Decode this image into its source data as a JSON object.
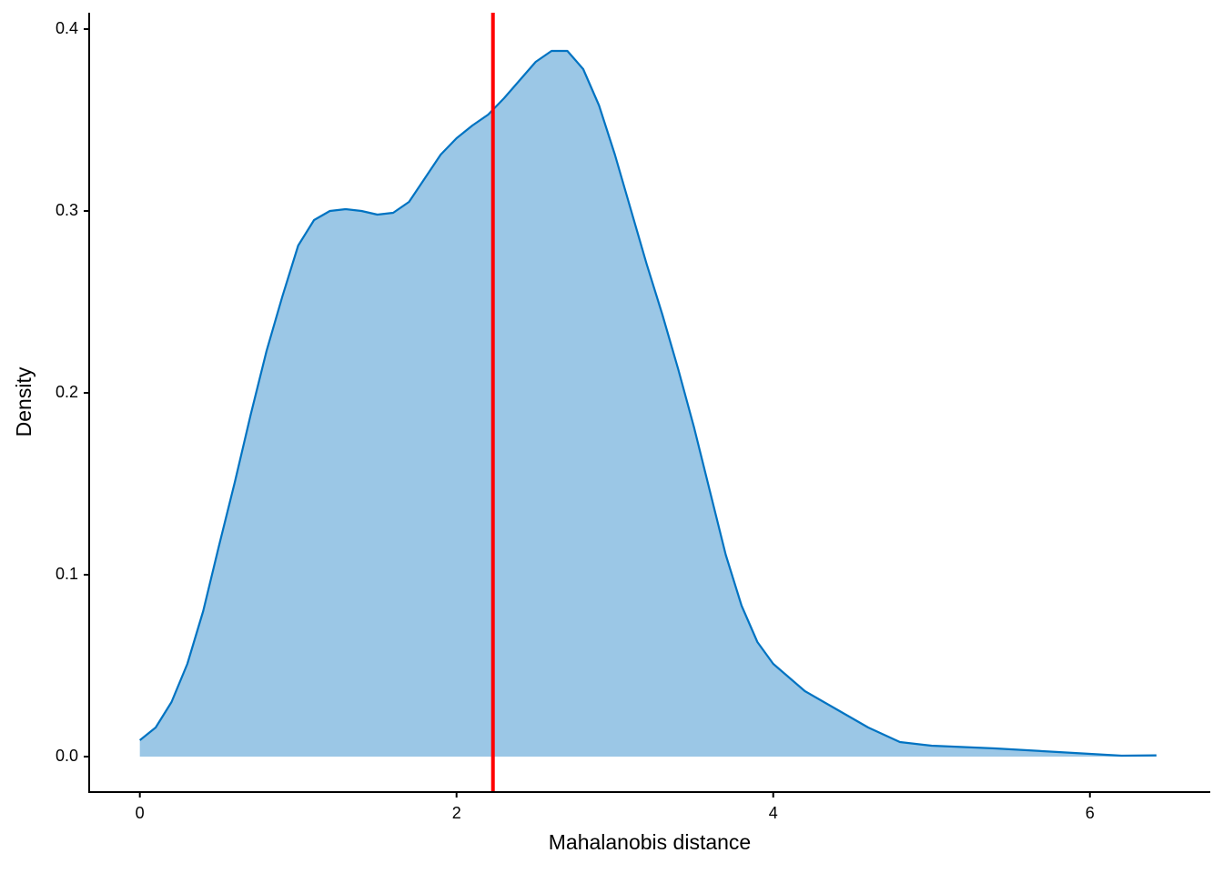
{
  "chart_data": {
    "type": "density",
    "xlabel": "Mahalanobis distance",
    "ylabel": "Density",
    "x": [
      0,
      0.1,
      0.2,
      0.3,
      0.4,
      0.5,
      0.6,
      0.7,
      0.8,
      0.9,
      1.0,
      1.1,
      1.2,
      1.3,
      1.4,
      1.5,
      1.6,
      1.7,
      1.8,
      1.9,
      2.0,
      2.1,
      2.2,
      2.3,
      2.4,
      2.5,
      2.6,
      2.7,
      2.8,
      2.9,
      3.0,
      3.1,
      3.2,
      3.3,
      3.4,
      3.5,
      3.6,
      3.7,
      3.8,
      3.9,
      4.0,
      4.2,
      4.4,
      4.6,
      4.8,
      5.0,
      5.4,
      5.8,
      6.2,
      6.42
    ],
    "values": [
      0.009,
      0.016,
      0.03,
      0.051,
      0.08,
      0.116,
      0.151,
      0.188,
      0.223,
      0.253,
      0.281,
      0.295,
      0.3,
      0.301,
      0.3,
      0.298,
      0.299,
      0.305,
      0.318,
      0.331,
      0.34,
      0.347,
      0.353,
      0.362,
      0.372,
      0.382,
      0.388,
      0.388,
      0.378,
      0.358,
      0.331,
      0.301,
      0.271,
      0.243,
      0.213,
      0.181,
      0.146,
      0.111,
      0.083,
      0.063,
      0.051,
      0.036,
      0.026,
      0.016,
      0.008,
      0.006,
      0.0045,
      0.0025,
      0.0005,
      0.0007
    ],
    "color": "#0073c2",
    "fill": "#9bc7e6",
    "vline": 2.23,
    "vline_color": "#ff0000",
    "xlim": [
      -0.32,
      6.76
    ],
    "ylim": [
      -0.0195,
      0.409
    ],
    "xticks": [
      0,
      2,
      4,
      6
    ],
    "yticks": [
      {
        "value": 0,
        "label": "0.0"
      },
      0.1,
      0.2,
      0.3,
      0.4
    ]
  }
}
